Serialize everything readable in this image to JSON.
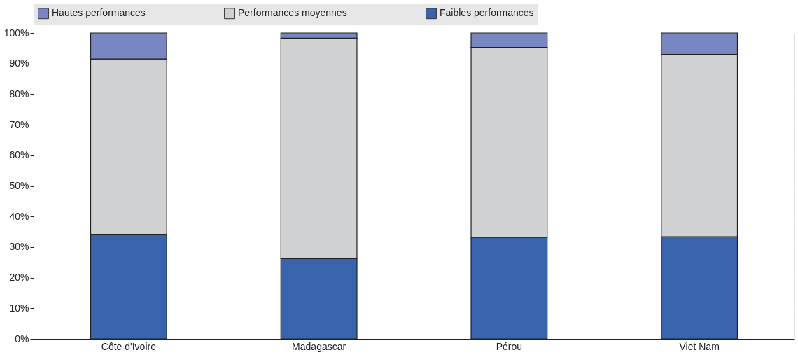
{
  "chart_data": {
    "type": "bar",
    "stacked": true,
    "categories": [
      "Côte d'Ivoire",
      "Madagascar",
      "Pérou",
      "Viet Nam"
    ],
    "series": [
      {
        "name": "Faibles performances",
        "color": "#3864ae",
        "values": [
          34.2,
          26.2,
          33.2,
          33.4
        ]
      },
      {
        "name": "Performances moyennes",
        "color": "#d0d1d3",
        "values": [
          57.3,
          72.1,
          62.1,
          59.6
        ]
      },
      {
        "name": "Hautes performances",
        "color": "#7886c2",
        "values": [
          8.5,
          1.7,
          4.7,
          7.0
        ]
      }
    ],
    "ylim": [
      0,
      100
    ],
    "yticks": [
      {
        "value": 0,
        "label": "0%"
      },
      {
        "value": 10,
        "label": "10%"
      },
      {
        "value": 20,
        "label": "20%"
      },
      {
        "value": 30,
        "label": "30%"
      },
      {
        "value": 40,
        "label": "40%"
      },
      {
        "value": 50,
        "label": "50%"
      },
      {
        "value": 60,
        "label": "60%"
      },
      {
        "value": 70,
        "label": "70%"
      },
      {
        "value": 80,
        "label": "80%"
      },
      {
        "value": 90,
        "label": "90%"
      },
      {
        "value": 100,
        "label": "100%"
      }
    ],
    "grid": true,
    "legend": "top"
  }
}
